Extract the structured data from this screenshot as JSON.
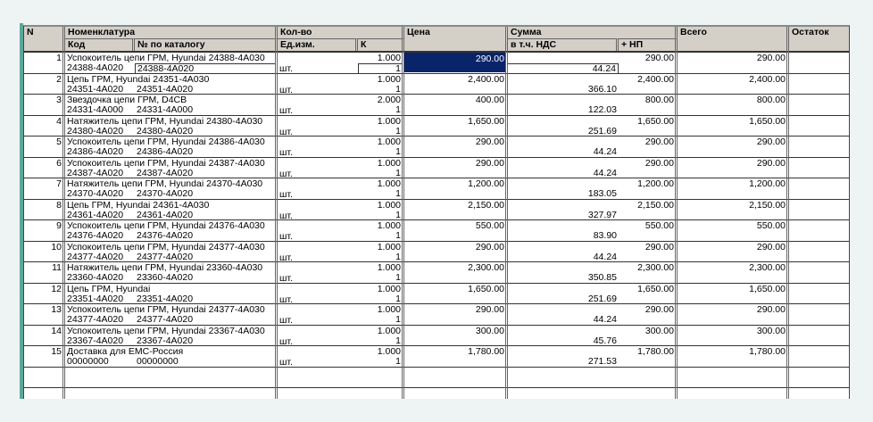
{
  "header": {
    "n": "N",
    "nomenclature": "Номенклатура",
    "code": "Код",
    "catalog": "№ по каталогу",
    "qty": "Кол-во",
    "unit": "Ед.изм.",
    "k": "К",
    "price": "Цена",
    "sum": "Сумма",
    "vat": "в т.ч. НДС",
    "np": "+ НП",
    "total": "Всего",
    "rest": "Остаток"
  },
  "selection_color": "#0a246a",
  "rows": [
    {
      "n": "1",
      "name": "Успокоитель цепи ГРМ, Hyundai 24388-4A030",
      "code": "24388-4A020",
      "catalog": "24388-4A020",
      "qty": "1.000",
      "unit": "шт.",
      "k": "1",
      "price": "290.00",
      "sum": "290.00",
      "vat": "44.24",
      "total": "290.00",
      "selected": true
    },
    {
      "n": "2",
      "name": "Цепь ГРМ, Hyundai 24351-4A030",
      "code": "24351-4A020",
      "catalog": "24351-4A020",
      "qty": "1.000",
      "unit": "шт.",
      "k": "1",
      "price": "2,400.00",
      "sum": "2,400.00",
      "vat": "366.10",
      "total": "2,400.00"
    },
    {
      "n": "3",
      "name": "Звездочка цепи ГРМ, D4CB",
      "code": "24331-4A000",
      "catalog": "24331-4A000",
      "qty": "2.000",
      "unit": "шт.",
      "k": "1",
      "price": "400.00",
      "sum": "800.00",
      "vat": "122.03",
      "total": "800.00"
    },
    {
      "n": "4",
      "name": "Натяжитель цепи ГРМ, Hyundai 24380-4A030",
      "code": "24380-4A020",
      "catalog": "24380-4A020",
      "qty": "1.000",
      "unit": "шт.",
      "k": "1",
      "price": "1,650.00",
      "sum": "1,650.00",
      "vat": "251.69",
      "total": "1,650.00"
    },
    {
      "n": "5",
      "name": "Успокоитель цепи ГРМ, Hyundai 24386-4A030",
      "code": "24386-4A020",
      "catalog": "24386-4A020",
      "qty": "1.000",
      "unit": "шт.",
      "k": "1",
      "price": "290.00",
      "sum": "290.00",
      "vat": "44.24",
      "total": "290.00"
    },
    {
      "n": "6",
      "name": "Успокоитель цепи ГРМ, Hyundai 24387-4A030",
      "code": "24387-4A020",
      "catalog": "24387-4A020",
      "qty": "1.000",
      "unit": "шт.",
      "k": "1",
      "price": "290.00",
      "sum": "290.00",
      "vat": "44.24",
      "total": "290.00"
    },
    {
      "n": "7",
      "name": "Натяжитель цепи ГРМ, Hyundai 24370-4A030",
      "code": "24370-4A020",
      "catalog": "24370-4A020",
      "qty": "1.000",
      "unit": "шт.",
      "k": "1",
      "price": "1,200.00",
      "sum": "1,200.00",
      "vat": "183.05",
      "total": "1,200.00"
    },
    {
      "n": "8",
      "name": "Цепь ГРМ, Hyundai 24361-4A030",
      "code": "24361-4A020",
      "catalog": "24361-4A020",
      "qty": "1.000",
      "unit": "шт.",
      "k": "1",
      "price": "2,150.00",
      "sum": "2,150.00",
      "vat": "327.97",
      "total": "2,150.00"
    },
    {
      "n": "9",
      "name": "Успокоитель цепи ГРМ, Hyundai 24376-4A030",
      "code": "24376-4A020",
      "catalog": "24376-4A020",
      "qty": "1.000",
      "unit": "шт.",
      "k": "1",
      "price": "550.00",
      "sum": "550.00",
      "vat": "83.90",
      "total": "550.00"
    },
    {
      "n": "10",
      "name": "Успокоитель цепи ГРМ, Hyundai 24377-4A030",
      "code": "24377-4A020",
      "catalog": "24377-4A020",
      "qty": "1.000",
      "unit": "шт.",
      "k": "1",
      "price": "290.00",
      "sum": "290.00",
      "vat": "44.24",
      "total": "290.00"
    },
    {
      "n": "11",
      "name": "Натяжитель цепи ГРМ, Hyundai 23360-4A030",
      "code": "23360-4A020",
      "catalog": "23360-4A020",
      "qty": "1.000",
      "unit": "шт.",
      "k": "1",
      "price": "2,300.00",
      "sum": "2,300.00",
      "vat": "350.85",
      "total": "2,300.00"
    },
    {
      "n": "12",
      "name": "Цепь ГРМ, Hyundai",
      "code": "23351-4A020",
      "catalog": "23351-4A020",
      "qty": "1.000",
      "unit": "шт.",
      "k": "1",
      "price": "1,650.00",
      "sum": "1,650.00",
      "vat": "251.69",
      "total": "1,650.00"
    },
    {
      "n": "13",
      "name": "Успокоитель цепи ГРМ, Hyundai 24377-4A030",
      "code": "24377-4A020",
      "catalog": "24377-4A020",
      "qty": "1.000",
      "unit": "шт.",
      "k": "1",
      "price": "290.00",
      "sum": "290.00",
      "vat": "44.24",
      "total": "290.00"
    },
    {
      "n": "14",
      "name": "Успокоитель цепи ГРМ, Hyundai 23367-4A030",
      "code": "23367-4A020",
      "catalog": "23367-4A020",
      "qty": "1.000",
      "unit": "шт.",
      "k": "1",
      "price": "300.00",
      "sum": "300.00",
      "vat": "45.76",
      "total": "300.00"
    },
    {
      "n": "15",
      "name": "Доставка для ЕМС-Россия",
      "code": "00000000",
      "catalog": "00000000",
      "qty": "1.000",
      "unit": "шт.",
      "k": "1",
      "price": "1,780.00",
      "sum": "1,780.00",
      "vat": "271.53",
      "total": "1,780.00"
    }
  ]
}
